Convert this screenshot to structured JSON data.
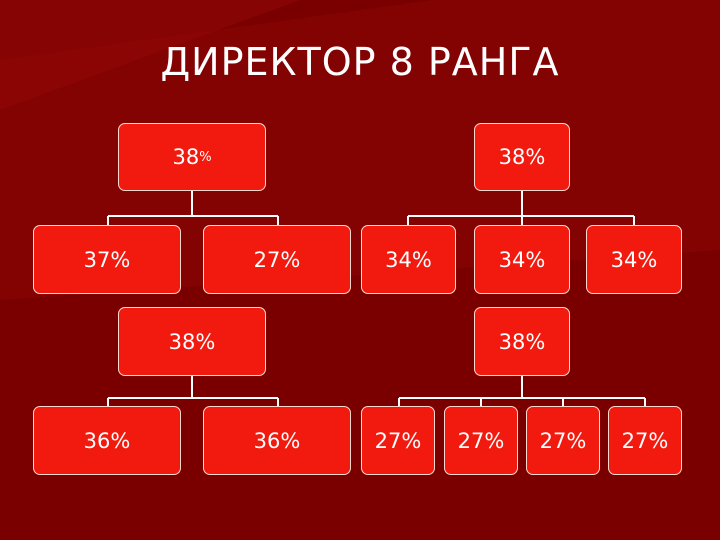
{
  "title": "ДИРЕКТОР 8 РАНГА",
  "colors": {
    "background": "#7a0000",
    "node_fill": "#f21a0e",
    "node_border": "#ffd9d0",
    "connector": "#ffffff"
  },
  "tree1": {
    "root": {
      "value": "38",
      "unit": "%"
    },
    "children": [
      "37%",
      "27%"
    ]
  },
  "tree2": {
    "root": {
      "value": "38%"
    },
    "children": [
      "34%",
      "34%",
      "34%"
    ]
  },
  "tree3": {
    "root": {
      "value": "38%"
    },
    "children": [
      "36%",
      "36%"
    ]
  },
  "tree4": {
    "root": {
      "value": "38%"
    },
    "children": [
      "27%",
      "27%",
      "27%",
      "27%"
    ]
  }
}
